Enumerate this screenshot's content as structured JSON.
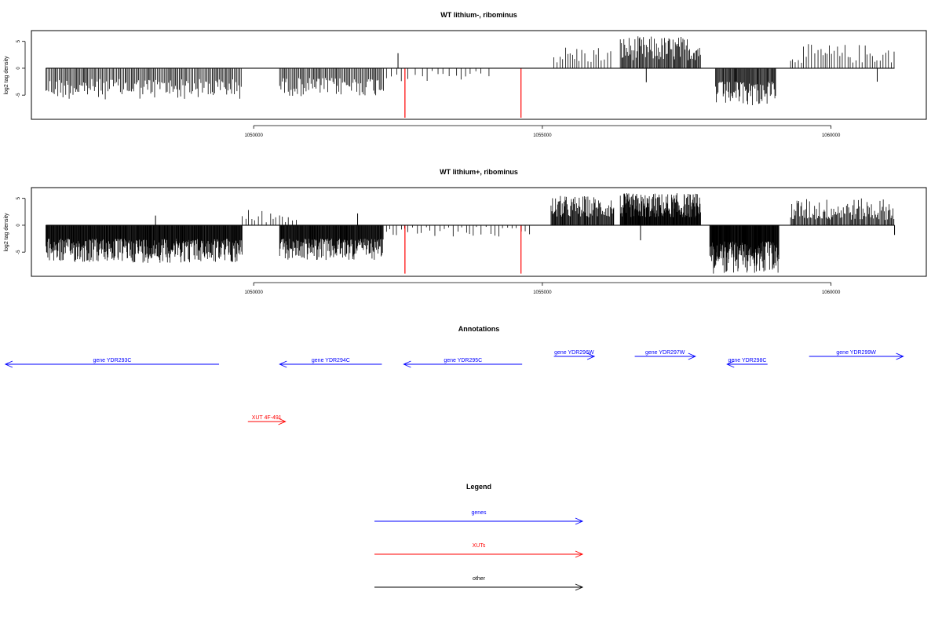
{
  "colors": {
    "genes": "#0000ff",
    "XUTs": "#ff0000",
    "other": "#000000",
    "signal": "#000000",
    "highlight": "#ff0000"
  },
  "chart_data": [
    {
      "type": "bar",
      "title": "WT lithium-, ribominus",
      "ylabel": "log2 tag density",
      "xlim": [
        1046150,
        1061650
      ],
      "ylim": [
        -9.5,
        7
      ],
      "x_ticks": [
        1050000,
        1055000,
        1060000
      ],
      "x_tick_labels": [
        "1050000",
        "1055000",
        "1060000"
      ],
      "y_ticks": [
        5,
        0,
        -5
      ],
      "y_tick_labels": [
        "5",
        "0",
        "-5"
      ],
      "segments": [
        {
          "start": 1046400,
          "end": 1049800,
          "sign": -1,
          "min": 2.0,
          "max": 5.8,
          "step": 22
        },
        {
          "start": 1050450,
          "end": 1052250,
          "sign": -1,
          "min": 1.8,
          "max": 5.2,
          "step": 22
        },
        {
          "start": 1052300,
          "end": 1054200,
          "sign": -1,
          "min": 0.5,
          "max": 2.5,
          "step": 110
        },
        {
          "start": 1055200,
          "end": 1056200,
          "sign": 1,
          "min": 1.0,
          "max": 4.2,
          "step": 45
        },
        {
          "start": 1056350,
          "end": 1057750,
          "sign": 1,
          "min": 1.5,
          "max": 6.0,
          "step": 16
        },
        {
          "start": 1058000,
          "end": 1059050,
          "sign": -1,
          "min": 2.5,
          "max": 7.0,
          "step": 14
        },
        {
          "start": 1059300,
          "end": 1061100,
          "sign": 1,
          "min": 1.0,
          "max": 4.5,
          "step": 45
        }
      ],
      "extra_bars": [
        {
          "x": 1052500,
          "y": 2.8
        },
        {
          "x": 1056800,
          "y": -2.6
        },
        {
          "x": 1060800,
          "y": -2.5
        }
      ],
      "highlight_bars": [
        {
          "x": 1052620,
          "y": -9.2
        },
        {
          "x": 1054630,
          "y": -9.2
        }
      ]
    },
    {
      "type": "bar",
      "title": "WT lithium+, ribominus",
      "ylabel": "log2 tag density",
      "xlim": [
        1046150,
        1061650
      ],
      "ylim": [
        -9.5,
        7
      ],
      "x_ticks": [
        1050000,
        1055000,
        1060000
      ],
      "x_tick_labels": [
        "1050000",
        "1055000",
        "1060000"
      ],
      "y_ticks": [
        5,
        0,
        -5
      ],
      "y_tick_labels": [
        "5",
        "0",
        "-5"
      ],
      "segments": [
        {
          "start": 1046400,
          "end": 1049800,
          "sign": -1,
          "min": 2.5,
          "max": 7.0,
          "step": 9
        },
        {
          "start": 1049800,
          "end": 1050750,
          "sign": 1,
          "min": 0.5,
          "max": 3.0,
          "step": 60
        },
        {
          "start": 1050450,
          "end": 1052250,
          "sign": -1,
          "min": 2.5,
          "max": 6.5,
          "step": 9
        },
        {
          "start": 1052300,
          "end": 1054800,
          "sign": -1,
          "min": 0.3,
          "max": 2.2,
          "step": 70
        },
        {
          "start": 1055150,
          "end": 1056250,
          "sign": 1,
          "min": 1.5,
          "max": 5.5,
          "step": 12
        },
        {
          "start": 1056350,
          "end": 1057750,
          "sign": 1,
          "min": 1.5,
          "max": 6.0,
          "step": 8
        },
        {
          "start": 1057900,
          "end": 1059100,
          "sign": -1,
          "min": 3.0,
          "max": 9.0,
          "step": 7
        },
        {
          "start": 1059300,
          "end": 1061100,
          "sign": 1,
          "min": 1.0,
          "max": 5.0,
          "step": 16
        }
      ],
      "extra_bars": [
        {
          "x": 1048300,
          "y": 1.8
        },
        {
          "x": 1051800,
          "y": 2.2
        },
        {
          "x": 1056700,
          "y": -2.8
        },
        {
          "x": 1061100,
          "y": -1.8
        }
      ],
      "highlight_bars": [
        {
          "x": 1052620,
          "y": -9.0
        },
        {
          "x": 1054630,
          "y": -9.0
        }
      ]
    }
  ],
  "annotations": {
    "title": "Annotations",
    "items": [
      {
        "label": "gene YDR293C",
        "type": "genes",
        "from": 1049400,
        "to": 1045700,
        "row": 0
      },
      {
        "label": "gene YDR294C",
        "type": "genes",
        "from": 1052220,
        "to": 1050450,
        "row": 0
      },
      {
        "label": "gene YDR295C",
        "type": "genes",
        "from": 1054650,
        "to": 1052600,
        "row": 0
      },
      {
        "label": "gene YDR296W",
        "type": "genes",
        "from": 1055200,
        "to": 1055900,
        "row": 1
      },
      {
        "label": "gene YDR297W",
        "type": "genes",
        "from": 1056600,
        "to": 1057650,
        "row": 1
      },
      {
        "label": "gene YDR298C",
        "type": "genes",
        "from": 1058900,
        "to": 1058200,
        "row": 0
      },
      {
        "label": "gene YDR299W",
        "type": "genes",
        "from": 1059620,
        "to": 1061250,
        "row": 1
      },
      {
        "label": "XUT 4F-491",
        "type": "XUTs",
        "from": 1049900,
        "to": 1050550,
        "row": 2
      }
    ]
  },
  "legend": {
    "title": "Legend",
    "items": [
      {
        "label": "genes",
        "type": "genes"
      },
      {
        "label": "XUTs",
        "type": "XUTs"
      },
      {
        "label": "other",
        "type": "other"
      }
    ]
  }
}
